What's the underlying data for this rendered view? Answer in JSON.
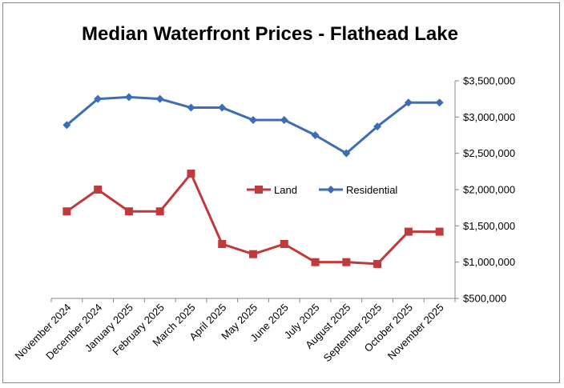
{
  "chart_data": {
    "type": "line",
    "title": "Median Waterfront Prices - Flathead Lake",
    "xlabel": "",
    "ylabel": "",
    "y_axis_side": "right",
    "ylim": [
      500000,
      3500000
    ],
    "yticks": [
      500000,
      1000000,
      1500000,
      2000000,
      2500000,
      3000000,
      3500000
    ],
    "ytick_labels": [
      "$500,000",
      "$1,000,000",
      "$1,500,000",
      "$2,000,000",
      "$2,500,000",
      "$3,000,000",
      "$3,500,000"
    ],
    "categories": [
      "November 2024",
      "December 2024",
      "January 2025",
      "February 2025",
      "March 2025",
      "April 2025",
      "May 2025",
      "June 2025",
      "July 2025",
      "August 2025",
      "September 2025",
      "October 2025",
      "November 2025"
    ],
    "grid": false,
    "legend_position": "center",
    "series": [
      {
        "name": "Land",
        "color": "#c0393b",
        "marker": "square",
        "values": [
          1700000,
          2000000,
          1700000,
          1700000,
          2220000,
          1250000,
          1110000,
          1250000,
          1000000,
          1000000,
          975000,
          1420000,
          1420000
        ]
      },
      {
        "name": "Residential",
        "color": "#3d6db5",
        "marker": "diamond",
        "values": [
          2890000,
          3250000,
          3275000,
          3250000,
          3130000,
          3130000,
          2960000,
          2960000,
          2750000,
          2500000,
          2870000,
          3200000,
          3200000
        ]
      }
    ]
  }
}
